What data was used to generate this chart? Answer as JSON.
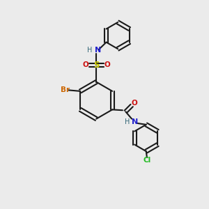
{
  "bg_color": "#ebebeb",
  "bond_color": "#1a1a1a",
  "atom_colors": {
    "Br": "#cc6600",
    "Cl": "#22bb22",
    "N": "#2222cc",
    "O": "#cc1111",
    "S": "#cccc00",
    "H": "#336677",
    "C": "#1a1a1a"
  },
  "figsize": [
    3.0,
    3.0
  ],
  "dpi": 100
}
